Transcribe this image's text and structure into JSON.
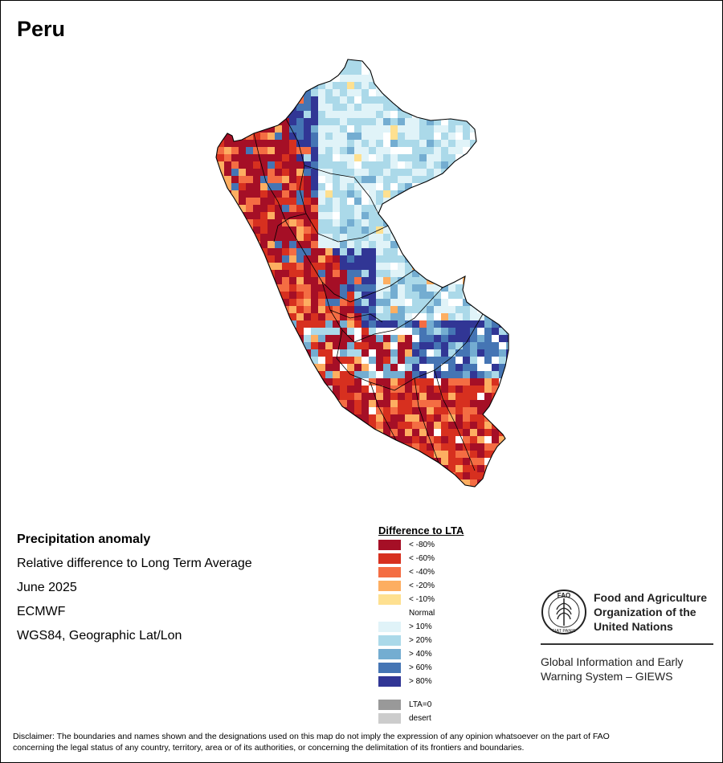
{
  "title": "Peru",
  "info": {
    "heading": "Precipitation anomaly",
    "subheading": "Relative difference to Long Term Average",
    "period": "June 2025",
    "source": "ECMWF",
    "projection": "WGS84, Geographic Lat/Lon"
  },
  "legend": {
    "title": "Difference to LTA",
    "classes": [
      {
        "label": "< -80%",
        "color": "#a50f26"
      },
      {
        "label": "< -60%",
        "color": "#d7301f"
      },
      {
        "label": "< -40%",
        "color": "#f46d43"
      },
      {
        "label": "< -20%",
        "color": "#fdae61"
      },
      {
        "label": "< -10%",
        "color": "#fee090"
      },
      {
        "label": "Normal",
        "color": "#ffffff"
      },
      {
        "label": "> 10%",
        "color": "#e0f3f8"
      },
      {
        "label": "> 20%",
        "color": "#abd9e9"
      },
      {
        "label": "> 40%",
        "color": "#74add1"
      },
      {
        "label": "> 60%",
        "color": "#4575b4"
      },
      {
        "label": "> 80%",
        "color": "#313695"
      },
      {
        "label": "LTA=0",
        "color": "#999999"
      },
      {
        "label": "desert",
        "color": "#cccccc"
      }
    ]
  },
  "logo": {
    "org_line1": "Food and Agriculture",
    "org_line2": "Organization of the",
    "org_line3": "United Nations",
    "system_line1": "Global Information and Early",
    "system_line2": "Warning System – GIEWS",
    "emblem_text": "FAO",
    "emblem_motto": "FIAT PANIS"
  },
  "disclaimer_line1": "Disclaimer: The boundaries and names shown and the designations used on this map do not imply the expression of any opinion whatsoever on the part of FAO",
  "disclaimer_line2": "concerning the legal status of any country, territory, area or of its authorities, or concerning the delimitation of its frontiers and boundaries."
}
